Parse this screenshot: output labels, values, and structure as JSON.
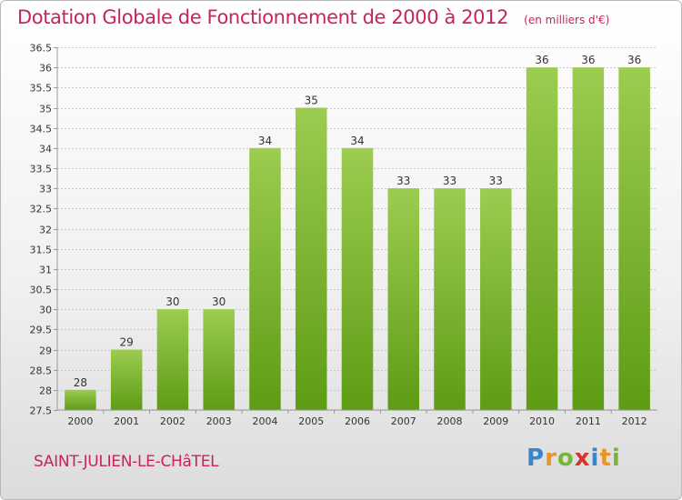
{
  "chart_data": {
    "type": "bar",
    "title": "Dotation Globale de Fonctionnement de 2000 à 2012",
    "subtitle": "(en milliers d'€)",
    "categories": [
      "2000",
      "2001",
      "2002",
      "2003",
      "2004",
      "2005",
      "2006",
      "2007",
      "2008",
      "2009",
      "2010",
      "2011",
      "2012"
    ],
    "values": [
      28,
      29,
      30,
      30,
      34,
      35,
      34,
      33,
      33,
      33,
      36,
      36,
      36
    ],
    "ylim": [
      27.5,
      36.5
    ],
    "yticks": [
      27.5,
      28,
      28.5,
      29,
      29.5,
      30,
      30.5,
      31,
      31.5,
      32,
      32.5,
      33,
      33.5,
      34,
      34.5,
      35,
      35.5,
      36,
      36.5
    ],
    "grid": true,
    "bar_color_top": "#9ccc50",
    "bar_color_bottom": "#5e9c14"
  },
  "footer": {
    "commune": "SAINT-JULIEN-LE-CHâTEL",
    "brand": "Proxiti"
  },
  "colors": {
    "accent": "#c8245a"
  }
}
